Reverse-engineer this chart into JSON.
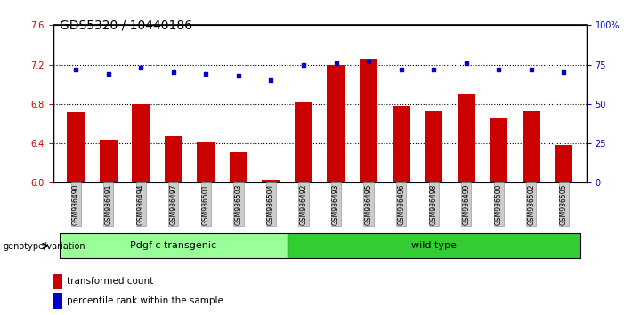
{
  "title": "GDS5320 / 10440186",
  "categories": [
    "GSM936490",
    "GSM936491",
    "GSM936494",
    "GSM936497",
    "GSM936501",
    "GSM936503",
    "GSM936504",
    "GSM936492",
    "GSM936493",
    "GSM936495",
    "GSM936496",
    "GSM936498",
    "GSM936499",
    "GSM936500",
    "GSM936502",
    "GSM936505"
  ],
  "bar_values": [
    6.72,
    6.44,
    6.8,
    6.47,
    6.41,
    6.31,
    6.03,
    6.82,
    7.2,
    7.26,
    6.78,
    6.73,
    6.9,
    6.65,
    6.73,
    6.38
  ],
  "dot_values": [
    72,
    69,
    73,
    70,
    69,
    68,
    65,
    75,
    76,
    77,
    72,
    72,
    76,
    72,
    72,
    70
  ],
  "ylim_left": [
    6.0,
    7.6
  ],
  "ylim_right": [
    0,
    100
  ],
  "yticks_left": [
    6.0,
    6.4,
    6.8,
    7.2,
    7.6
  ],
  "yticks_right": [
    0,
    25,
    50,
    75,
    100
  ],
  "ytick_labels_right": [
    "0",
    "25",
    "50",
    "75",
    "100%"
  ],
  "hlines": [
    6.4,
    6.8,
    7.2
  ],
  "group1_label": "Pdgf-c transgenic",
  "group2_label": "wild type",
  "group1_count": 7,
  "group2_count": 9,
  "genotype_label": "genotype/variation",
  "legend_bar_label": "transformed count",
  "legend_dot_label": "percentile rank within the sample",
  "bar_color": "#cc0000",
  "dot_color": "#0000cc",
  "group1_color": "#99ff99",
  "group2_color": "#33cc33",
  "tick_color_left": "#cc0000",
  "tick_color_right": "#0000cc",
  "title_fontsize": 10,
  "tick_fontsize": 7,
  "xtick_fontsize": 6,
  "label_fontsize": 7.5
}
